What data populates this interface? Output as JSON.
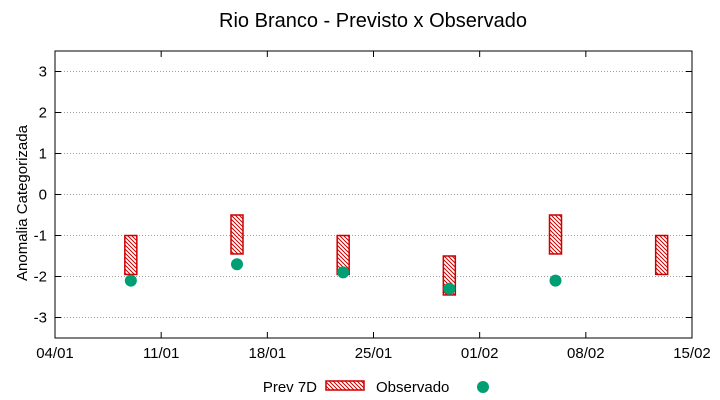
{
  "chart_data": {
    "type": "floating-bar-with-points",
    "title": "Rio Branco - Previsto x Observado",
    "xlabel": "",
    "ylabel": "Anomalia Categorizada",
    "x_ticks": [
      "04/01",
      "11/01",
      "18/01",
      "25/01",
      "01/02",
      "08/02",
      "15/02"
    ],
    "x_range": [
      "2025-01-04",
      "2025-02-15"
    ],
    "ylim": [
      -3.5,
      3.5
    ],
    "y_ticks": [
      3,
      2,
      1,
      0,
      -1,
      -2,
      -3
    ],
    "grid": "horizontal-dotted",
    "legend_position": "bottom",
    "series": [
      {
        "name": "Prev 7D",
        "kind": "range-bar",
        "color": "#cc0000",
        "points": [
          {
            "x": "2025-01-09",
            "low": -1.95,
            "high": -1.0
          },
          {
            "x": "2025-01-16",
            "low": -1.45,
            "high": -0.5
          },
          {
            "x": "2025-01-23",
            "low": -1.95,
            "high": -1.0
          },
          {
            "x": "2025-01-30",
            "low": -2.45,
            "high": -1.5
          },
          {
            "x": "2025-02-06",
            "low": -1.45,
            "high": -0.5
          },
          {
            "x": "2025-02-13",
            "low": -1.95,
            "high": -1.0
          }
        ]
      },
      {
        "name": "Observado",
        "kind": "point",
        "color": "#009e73",
        "points": [
          {
            "x": "2025-01-09",
            "y": -2.1
          },
          {
            "x": "2025-01-16",
            "y": -1.7
          },
          {
            "x": "2025-01-23",
            "y": -1.9
          },
          {
            "x": "2025-01-30",
            "y": -2.3
          },
          {
            "x": "2025-02-06",
            "y": -2.1
          }
        ]
      }
    ]
  }
}
